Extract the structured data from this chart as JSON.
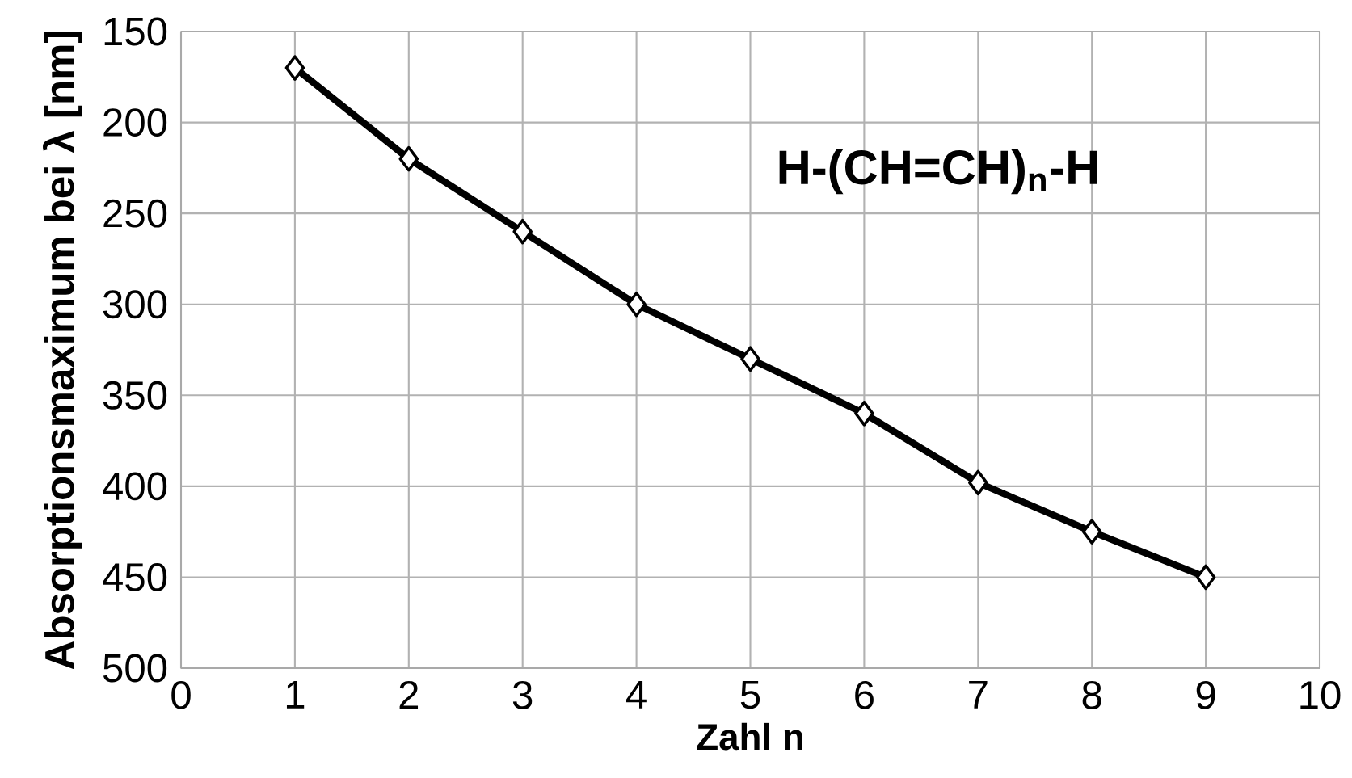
{
  "chart_data": {
    "type": "line",
    "xlabel": "Zahl n",
    "ylabel": "Absorptionsmaximum bei λ [nm]",
    "x": [
      1,
      2,
      3,
      4,
      5,
      6,
      7,
      8,
      9
    ],
    "series": [
      {
        "color": "#000000",
        "values": [
          170,
          220,
          260,
          300,
          330,
          360,
          398,
          425,
          450
        ]
      }
    ],
    "xlim": [
      0,
      10
    ],
    "xticks": [
      0,
      1,
      2,
      3,
      4,
      5,
      6,
      7,
      8,
      9,
      10
    ],
    "ylim": [
      500,
      150
    ],
    "yticks": [
      150,
      200,
      250,
      300,
      350,
      400,
      450,
      500
    ],
    "grid": true,
    "marker": "diamond",
    "line_style": "solid",
    "annotations": [
      "**H-(CH=CH)$_{n}$-H**"
    ]
  }
}
